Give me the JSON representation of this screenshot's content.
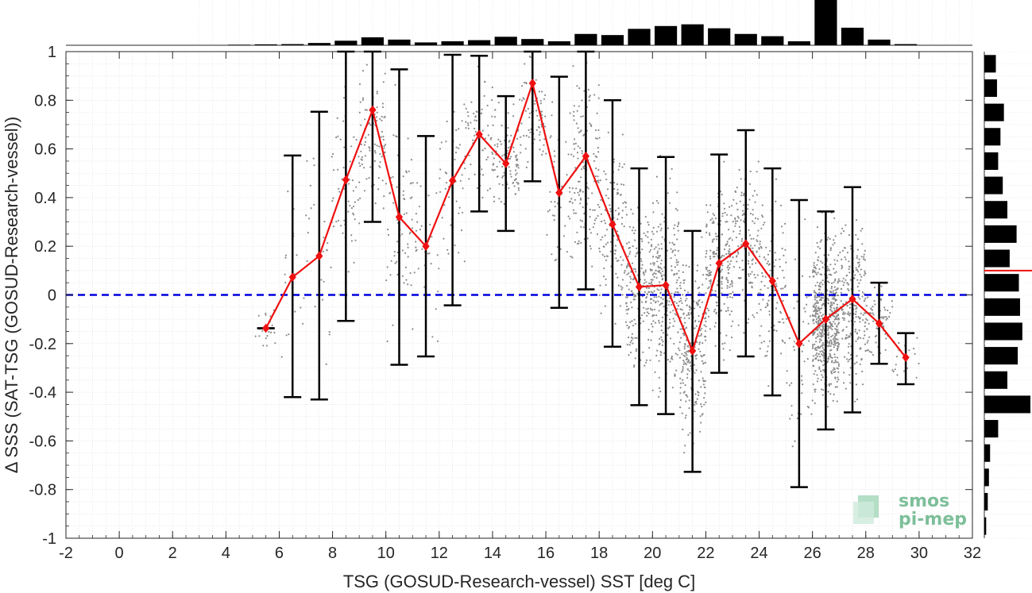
{
  "chart_data": {
    "type": "line",
    "xlabel": "TSG (GOSUD-Research-vessel) SST [deg C]",
    "ylabel": "Δ SSS (SAT-TSG (GOSUD-Research-vessel))",
    "xlim": [
      -2,
      32
    ],
    "ylim": [
      -1,
      1
    ],
    "xticks": [
      -2,
      0,
      2,
      4,
      6,
      8,
      10,
      12,
      14,
      16,
      18,
      20,
      22,
      24,
      26,
      28,
      30,
      32
    ],
    "yticks": [
      -1,
      -0.8,
      -0.6,
      -0.4,
      -0.2,
      0,
      0.2,
      0.4,
      0.6,
      0.8,
      1
    ],
    "grid": "minor dotted",
    "reference_line": {
      "y": 0,
      "style": "dashed",
      "color": "#0000dd"
    },
    "mean_series": {
      "color": "#ee1111",
      "x": [
        5.5,
        6.5,
        7.5,
        8.5,
        9.5,
        10.5,
        11.5,
        12.5,
        13.5,
        14.5,
        15.5,
        16.5,
        17.5,
        18.5,
        19.5,
        20.5,
        21.5,
        22.5,
        23.5,
        24.5,
        25.5,
        26.5,
        27.5,
        28.5,
        29.5
      ],
      "y": [
        -0.137,
        0.073,
        0.16,
        0.473,
        0.76,
        0.32,
        0.2,
        0.47,
        0.66,
        0.54,
        0.87,
        0.42,
        0.57,
        0.29,
        0.033,
        0.04,
        -0.23,
        0.13,
        0.21,
        0.057,
        -0.2,
        -0.1,
        -0.017,
        -0.117,
        -0.257
      ]
    },
    "error_bars": {
      "color": "#000000",
      "lower": [
        -0.137,
        -0.42,
        -0.43,
        -0.107,
        0.3,
        -0.287,
        -0.253,
        -0.043,
        0.343,
        0.263,
        0.467,
        -0.053,
        0.023,
        -0.213,
        -0.453,
        -0.49,
        -0.727,
        -0.32,
        -0.253,
        -0.413,
        -0.79,
        -0.553,
        -0.483,
        -0.283,
        -0.367
      ],
      "upper": [
        -0.137,
        0.573,
        0.753,
        1.0,
        1.0,
        0.927,
        0.653,
        0.987,
        0.983,
        0.817,
        1.0,
        0.897,
        1.0,
        0.8,
        0.52,
        0.567,
        0.263,
        0.577,
        0.677,
        0.52,
        0.39,
        0.343,
        0.443,
        0.05,
        -0.157
      ]
    },
    "scatter_color": "#8c8c8c",
    "top_histogram": {
      "description": "counts per 1 deg SST bin (relative heights)",
      "bin_centers": [
        4.5,
        5.5,
        6.5,
        7.5,
        8.5,
        9.5,
        10.5,
        11.5,
        12.5,
        13.5,
        14.5,
        15.5,
        16.5,
        17.5,
        18.5,
        19.5,
        20.5,
        21.5,
        22.5,
        23.5,
        24.5,
        25.5,
        26.5,
        27.5,
        28.5,
        29.5
      ],
      "values": [
        0.5,
        0.8,
        1.0,
        2.0,
        4.0,
        7.0,
        5.0,
        2.5,
        3.5,
        4.5,
        7.5,
        5.5,
        3.5,
        10.0,
        9.0,
        14.5,
        17.0,
        18.5,
        15.0,
        10.0,
        8.0,
        3.5,
        40.0,
        15.5,
        5.0,
        1.0
      ]
    },
    "right_histogram": {
      "description": "counts per 0.1 DSSS bin (relative widths)",
      "bin_centers": [
        0.95,
        0.85,
        0.75,
        0.65,
        0.55,
        0.45,
        0.35,
        0.25,
        0.15,
        0.05,
        -0.05,
        -0.15,
        -0.25,
        -0.35,
        -0.45,
        -0.55,
        -0.65,
        -0.75,
        -0.85,
        -0.95
      ],
      "values": [
        5,
        5.5,
        8.5,
        7,
        6,
        8,
        10,
        14,
        11,
        15,
        15.5,
        16.5,
        14.5,
        10,
        20,
        6,
        2.5,
        2,
        1.5,
        0.8
      ],
      "median_marker": 0.1
    },
    "logo": {
      "line1": "smos",
      "line2": "pi-mep"
    }
  }
}
